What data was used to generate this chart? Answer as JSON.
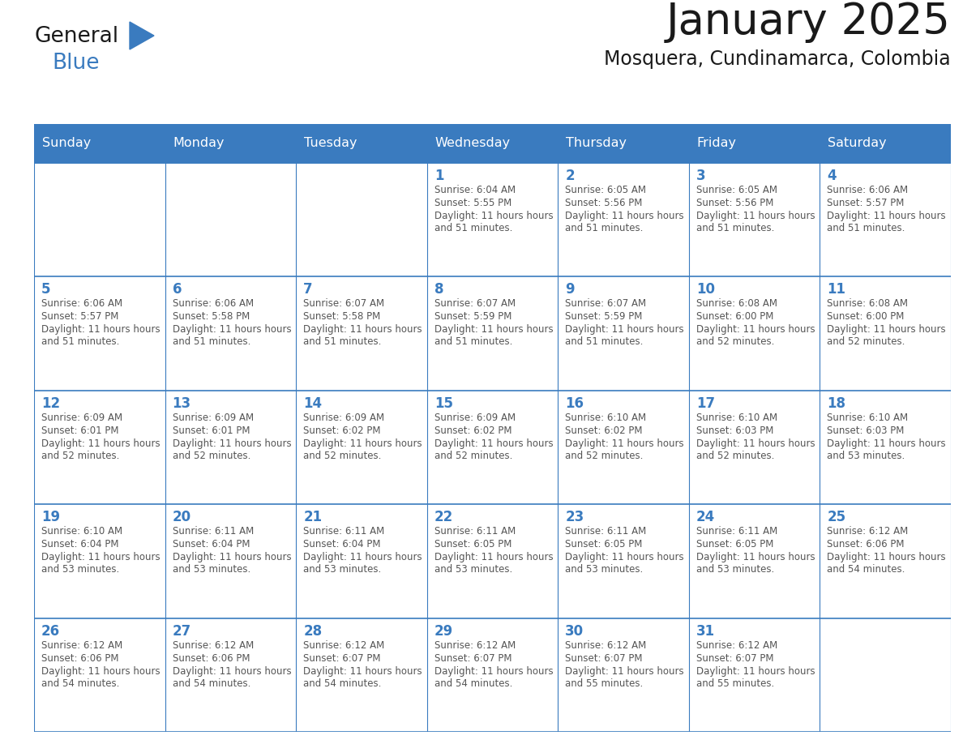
{
  "title": "January 2025",
  "subtitle": "Mosquera, Cundinamarca, Colombia",
  "header_bg_color": "#3a7bbf",
  "header_text_color": "#ffffff",
  "cell_bg_color": "#ffffff",
  "border_color": "#3a7bbf",
  "day_number_color": "#3a7bbf",
  "cell_text_color": "#555555",
  "days_of_week": [
    "Sunday",
    "Monday",
    "Tuesday",
    "Wednesday",
    "Thursday",
    "Friday",
    "Saturday"
  ],
  "calendar_data": [
    [
      null,
      null,
      null,
      {
        "day": 1,
        "sunrise": "6:04 AM",
        "sunset": "5:55 PM",
        "daylight": "11 hours and 51 minutes."
      },
      {
        "day": 2,
        "sunrise": "6:05 AM",
        "sunset": "5:56 PM",
        "daylight": "11 hours and 51 minutes."
      },
      {
        "day": 3,
        "sunrise": "6:05 AM",
        "sunset": "5:56 PM",
        "daylight": "11 hours and 51 minutes."
      },
      {
        "day": 4,
        "sunrise": "6:06 AM",
        "sunset": "5:57 PM",
        "daylight": "11 hours and 51 minutes."
      }
    ],
    [
      {
        "day": 5,
        "sunrise": "6:06 AM",
        "sunset": "5:57 PM",
        "daylight": "11 hours and 51 minutes."
      },
      {
        "day": 6,
        "sunrise": "6:06 AM",
        "sunset": "5:58 PM",
        "daylight": "11 hours and 51 minutes."
      },
      {
        "day": 7,
        "sunrise": "6:07 AM",
        "sunset": "5:58 PM",
        "daylight": "11 hours and 51 minutes."
      },
      {
        "day": 8,
        "sunrise": "6:07 AM",
        "sunset": "5:59 PM",
        "daylight": "11 hours and 51 minutes."
      },
      {
        "day": 9,
        "sunrise": "6:07 AM",
        "sunset": "5:59 PM",
        "daylight": "11 hours and 51 minutes."
      },
      {
        "day": 10,
        "sunrise": "6:08 AM",
        "sunset": "6:00 PM",
        "daylight": "11 hours and 52 minutes."
      },
      {
        "day": 11,
        "sunrise": "6:08 AM",
        "sunset": "6:00 PM",
        "daylight": "11 hours and 52 minutes."
      }
    ],
    [
      {
        "day": 12,
        "sunrise": "6:09 AM",
        "sunset": "6:01 PM",
        "daylight": "11 hours and 52 minutes."
      },
      {
        "day": 13,
        "sunrise": "6:09 AM",
        "sunset": "6:01 PM",
        "daylight": "11 hours and 52 minutes."
      },
      {
        "day": 14,
        "sunrise": "6:09 AM",
        "sunset": "6:02 PM",
        "daylight": "11 hours and 52 minutes."
      },
      {
        "day": 15,
        "sunrise": "6:09 AM",
        "sunset": "6:02 PM",
        "daylight": "11 hours and 52 minutes."
      },
      {
        "day": 16,
        "sunrise": "6:10 AM",
        "sunset": "6:02 PM",
        "daylight": "11 hours and 52 minutes."
      },
      {
        "day": 17,
        "sunrise": "6:10 AM",
        "sunset": "6:03 PM",
        "daylight": "11 hours and 52 minutes."
      },
      {
        "day": 18,
        "sunrise": "6:10 AM",
        "sunset": "6:03 PM",
        "daylight": "11 hours and 53 minutes."
      }
    ],
    [
      {
        "day": 19,
        "sunrise": "6:10 AM",
        "sunset": "6:04 PM",
        "daylight": "11 hours and 53 minutes."
      },
      {
        "day": 20,
        "sunrise": "6:11 AM",
        "sunset": "6:04 PM",
        "daylight": "11 hours and 53 minutes."
      },
      {
        "day": 21,
        "sunrise": "6:11 AM",
        "sunset": "6:04 PM",
        "daylight": "11 hours and 53 minutes."
      },
      {
        "day": 22,
        "sunrise": "6:11 AM",
        "sunset": "6:05 PM",
        "daylight": "11 hours and 53 minutes."
      },
      {
        "day": 23,
        "sunrise": "6:11 AM",
        "sunset": "6:05 PM",
        "daylight": "11 hours and 53 minutes."
      },
      {
        "day": 24,
        "sunrise": "6:11 AM",
        "sunset": "6:05 PM",
        "daylight": "11 hours and 53 minutes."
      },
      {
        "day": 25,
        "sunrise": "6:12 AM",
        "sunset": "6:06 PM",
        "daylight": "11 hours and 54 minutes."
      }
    ],
    [
      {
        "day": 26,
        "sunrise": "6:12 AM",
        "sunset": "6:06 PM",
        "daylight": "11 hours and 54 minutes."
      },
      {
        "day": 27,
        "sunrise": "6:12 AM",
        "sunset": "6:06 PM",
        "daylight": "11 hours and 54 minutes."
      },
      {
        "day": 28,
        "sunrise": "6:12 AM",
        "sunset": "6:07 PM",
        "daylight": "11 hours and 54 minutes."
      },
      {
        "day": 29,
        "sunrise": "6:12 AM",
        "sunset": "6:07 PM",
        "daylight": "11 hours and 54 minutes."
      },
      {
        "day": 30,
        "sunrise": "6:12 AM",
        "sunset": "6:07 PM",
        "daylight": "11 hours and 55 minutes."
      },
      {
        "day": 31,
        "sunrise": "6:12 AM",
        "sunset": "6:07 PM",
        "daylight": "11 hours and 55 minutes."
      },
      null
    ]
  ],
  "logo_triangle_color": "#3a7bbf",
  "fig_width": 11.88,
  "fig_height": 9.18,
  "dpi": 100
}
